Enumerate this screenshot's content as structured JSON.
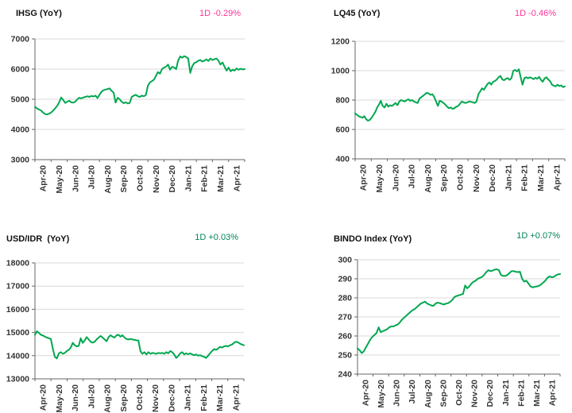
{
  "colors": {
    "line": "#00A750",
    "negative": "#FF3399",
    "positive": "#00855B",
    "grid": "#D9D9D9",
    "axis": "#666666",
    "tick_text": "#333333"
  },
  "chart_data": [
    {
      "type": "line",
      "title": "IHSG (YoY)",
      "change_label": "1D -0.29%",
      "change": "negative",
      "ylim": [
        3000,
        7000
      ],
      "yticks": [
        3000,
        4000,
        5000,
        6000,
        7000
      ],
      "x_tick_labels": [
        "Apr-20",
        "May-20",
        "Jun-20",
        "Jul-20",
        "Aug-20",
        "Sep-20",
        "Oct-20",
        "Nov-20",
        "Dec-20",
        "Jan-21",
        "Feb-21",
        "Mar-21",
        "Apr-21"
      ],
      "grid": true,
      "legend": "none",
      "values": [
        4750,
        4700,
        4660,
        4630,
        4560,
        4510,
        4500,
        4520,
        4560,
        4620,
        4700,
        4780,
        4900,
        5060,
        4980,
        4880,
        4920,
        4950,
        4900,
        4890,
        4920,
        5000,
        5050,
        5030,
        5060,
        5080,
        5100,
        5080,
        5110,
        5090,
        5120,
        5040,
        5150,
        5250,
        5300,
        5320,
        5340,
        5360,
        5280,
        5220,
        4890,
        5050,
        5000,
        4920,
        4870,
        4900,
        4860,
        4880,
        5080,
        5120,
        5150,
        5100,
        5080,
        5120,
        5100,
        5140,
        5450,
        5560,
        5600,
        5650,
        5780,
        5900,
        5850,
        6000,
        6050,
        6080,
        6150,
        5980,
        6080,
        6050,
        6000,
        6280,
        6420,
        6380,
        6430,
        6400,
        6350,
        5870,
        6100,
        6200,
        6230,
        6280,
        6300,
        6250,
        6280,
        6320,
        6270,
        6350,
        6300,
        6330,
        6350,
        6280,
        6150,
        6220,
        6080,
        5950,
        6050,
        5930,
        5980,
        5950,
        6020,
        5980,
        6010,
        5990,
        6000
      ]
    },
    {
      "type": "line",
      "title": "LQ45 (YoY)",
      "change_label": "1D -0.46%",
      "change": "negative",
      "ylim": [
        400,
        1200
      ],
      "yticks": [
        400,
        600,
        800,
        1000,
        1200
      ],
      "x_tick_labels": [
        "Apr-20",
        "May-20",
        "Jun-20",
        "Jul-20",
        "Aug-20",
        "Sep-20",
        "Oct-20",
        "Nov-20",
        "Dec-20",
        "Jan-21",
        "Feb-21",
        "Mar-21",
        "Apr-21"
      ],
      "grid": true,
      "legend": "none",
      "values": [
        710,
        700,
        690,
        685,
        680,
        690,
        670,
        660,
        665,
        680,
        700,
        720,
        750,
        770,
        795,
        760,
        750,
        775,
        755,
        765,
        760,
        770,
        780,
        765,
        790,
        800,
        795,
        790,
        800,
        805,
        795,
        800,
        790,
        785,
        780,
        810,
        820,
        830,
        840,
        850,
        845,
        835,
        840,
        820,
        790,
        760,
        795,
        790,
        780,
        770,
        755,
        745,
        750,
        740,
        745,
        755,
        760,
        775,
        790,
        785,
        780,
        785,
        790,
        788,
        785,
        780,
        790,
        840,
        860,
        880,
        870,
        890,
        910,
        920,
        905,
        925,
        930,
        940,
        955,
        965,
        940,
        935,
        945,
        950,
        938,
        950,
        1000,
        1005,
        995,
        1010,
        955,
        905,
        950,
        955,
        948,
        955,
        950,
        942,
        952,
        945,
        958,
        938,
        925,
        948,
        955,
        940,
        928,
        905,
        898,
        893,
        905,
        895,
        900,
        888,
        893
      ]
    },
    {
      "type": "line",
      "title": "USD/IDR  (YoY)",
      "change_label": "1D +0.03%",
      "change": "positive",
      "ylim": [
        13000,
        18000
      ],
      "yticks": [
        13000,
        14000,
        15000,
        16000,
        17000,
        18000
      ],
      "x_tick_labels": [
        "Apr-20",
        "May-20",
        "Jun-20",
        "Jul-20",
        "Aug-20",
        "Sep-20",
        "Oct-20",
        "Nov-20",
        "Dec-20",
        "Jan-21",
        "Feb-21",
        "Mar-21",
        "Apr-21"
      ],
      "grid": true,
      "legend": "none",
      "values": [
        14900,
        15050,
        14980,
        14900,
        14870,
        14820,
        14780,
        14750,
        14720,
        14300,
        13950,
        13880,
        14100,
        14150,
        14080,
        14120,
        14200,
        14250,
        14350,
        14550,
        14450,
        14400,
        14420,
        14750,
        14550,
        14650,
        14800,
        14700,
        14600,
        14560,
        14600,
        14700,
        14780,
        14850,
        14780,
        14700,
        14620,
        14800,
        14880,
        14820,
        14780,
        14880,
        14900,
        14820,
        14880,
        14780,
        14720,
        14700,
        14720,
        14700,
        14680,
        14660,
        14650,
        14200,
        14080,
        14150,
        14050,
        14150,
        14080,
        14120,
        14100,
        14080,
        14120,
        14100,
        14120,
        14080,
        14150,
        14100,
        14200,
        14150,
        14050,
        13900,
        13980,
        14100,
        14150,
        14050,
        14100,
        14060,
        14100,
        14050,
        14020,
        14050,
        14000,
        14020,
        13980,
        13950,
        13900,
        14000,
        14100,
        14200,
        14280,
        14250,
        14300,
        14380,
        14350,
        14400,
        14420,
        14400,
        14450,
        14480,
        14550,
        14600,
        14580,
        14520,
        14480,
        14450
      ]
    },
    {
      "type": "line",
      "title": "BINDO Index (YoY)",
      "change_label": "1D +0.07%",
      "change": "positive",
      "ylim": [
        240,
        300
      ],
      "yticks": [
        240,
        250,
        260,
        270,
        280,
        290,
        300
      ],
      "x_tick_labels": [
        "Apr-20",
        "May-20",
        "Jun-20",
        "Jul-20",
        "Aug-20",
        "Sep-20",
        "Oct-20",
        "Nov-20",
        "Dec-20",
        "Jan-21",
        "Feb-21",
        "Mar-21",
        "Apr-21"
      ],
      "grid": true,
      "legend": "none",
      "values": [
        253.5,
        252.5,
        251,
        252,
        254,
        256,
        258,
        259.5,
        260.5,
        261.5,
        264.5,
        262,
        262.5,
        263,
        263.5,
        264.5,
        265,
        265,
        265.5,
        266,
        267,
        268.5,
        269.5,
        270.5,
        271.5,
        272.5,
        273.5,
        274,
        275,
        276,
        277,
        277.5,
        278,
        277,
        276.5,
        276,
        275.8,
        277,
        277.5,
        277.2,
        276.8,
        276.5,
        277,
        277.2,
        278,
        279,
        280.5,
        281,
        281.3,
        281.7,
        282,
        286.5,
        285,
        286,
        287.5,
        288.5,
        289,
        290,
        290.5,
        291,
        292,
        293.5,
        294.5,
        294,
        294.3,
        294.8,
        295,
        294.5,
        292,
        291.5,
        291.5,
        292,
        293,
        294,
        294,
        293.7,
        293.5,
        293.7,
        290,
        288.5,
        289,
        287.5,
        286,
        285.5,
        285.8,
        286,
        286.3,
        287,
        288,
        289,
        290.5,
        291.3,
        290.8,
        291,
        291.8,
        292.3,
        292.5
      ]
    }
  ]
}
